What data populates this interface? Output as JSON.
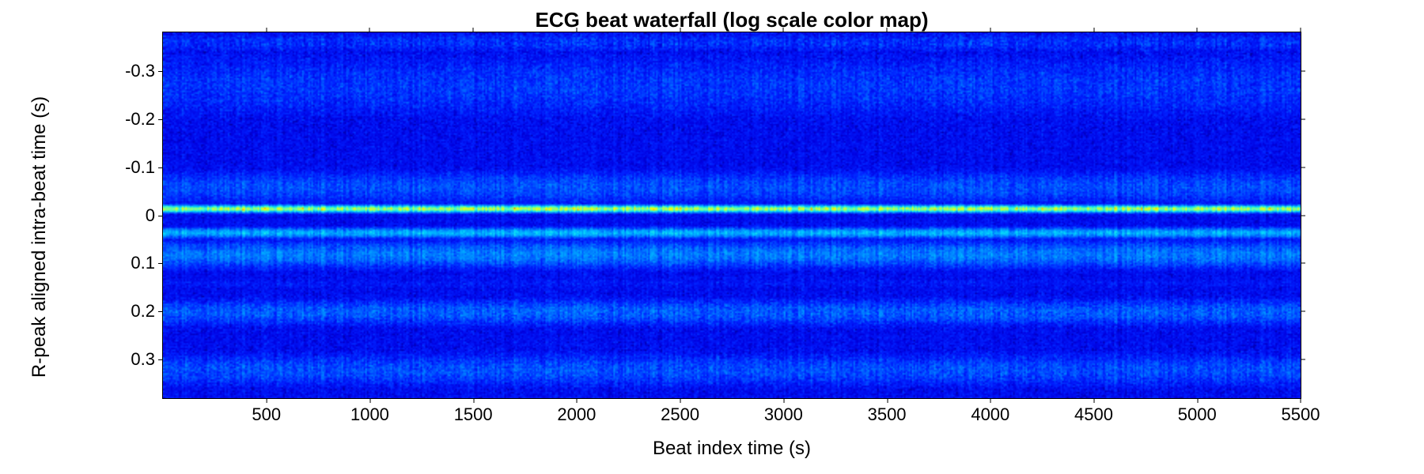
{
  "chart": {
    "type": "heatmap",
    "title": "ECG beat waterfall (log scale color map)",
    "title_fontsize": 26,
    "title_fontweight": "bold",
    "xlabel": "Beat index time (s)",
    "ylabel": "R-peak aligned intra-beat time (s)",
    "label_fontsize": 24,
    "tick_fontsize": 22,
    "xlim": [
      0,
      5500
    ],
    "ylim": [
      -0.38,
      0.38
    ],
    "y_reversed": true,
    "xticks": [
      500,
      1000,
      1500,
      2000,
      2500,
      3000,
      3500,
      4000,
      4500,
      5000,
      5500
    ],
    "yticks": [
      -0.3,
      -0.2,
      -0.1,
      0,
      0.1,
      0.2,
      0.3
    ],
    "background_color": "#ffffff",
    "axis_color": "#000000",
    "text_color": "#000000",
    "colormap": "jet_log",
    "colormap_stops": [
      {
        "t": 0.0,
        "color": "#00007f"
      },
      {
        "t": 0.1,
        "color": "#0000e0"
      },
      {
        "t": 0.2,
        "color": "#0020ff"
      },
      {
        "t": 0.35,
        "color": "#0080ff"
      },
      {
        "t": 0.5,
        "color": "#00d0ff"
      },
      {
        "t": 0.62,
        "color": "#40ffd0"
      },
      {
        "t": 0.75,
        "color": "#a0ff60"
      },
      {
        "t": 0.87,
        "color": "#ffff00"
      },
      {
        "t": 0.95,
        "color": "#ff6000"
      },
      {
        "t": 1.0,
        "color": "#800000"
      }
    ],
    "bands": [
      {
        "y_center": -0.36,
        "y_halfwidth": 0.03,
        "intensity": 0.18,
        "noise": 0.1
      },
      {
        "y_center": -0.27,
        "y_halfwidth": 0.1,
        "intensity": 0.19,
        "noise": 0.09
      },
      {
        "y_center": -0.175,
        "y_halfwidth": 0.015,
        "intensity": 0.12,
        "noise": 0.06
      },
      {
        "y_center": -0.12,
        "y_halfwidth": 0.03,
        "intensity": 0.1,
        "noise": 0.05
      },
      {
        "y_center": -0.06,
        "y_halfwidth": 0.05,
        "intensity": 0.22,
        "noise": 0.08
      },
      {
        "y_center": -0.015,
        "y_halfwidth": 0.01,
        "intensity": 0.62,
        "noise": 0.03
      },
      {
        "y_center": 0.035,
        "y_halfwidth": 0.015,
        "intensity": 0.36,
        "noise": 0.06
      },
      {
        "y_center": 0.08,
        "y_halfwidth": 0.04,
        "intensity": 0.28,
        "noise": 0.08
      },
      {
        "y_center": 0.14,
        "y_halfwidth": 0.02,
        "intensity": 0.14,
        "noise": 0.06
      },
      {
        "y_center": 0.2,
        "y_halfwidth": 0.04,
        "intensity": 0.24,
        "noise": 0.09
      },
      {
        "y_center": 0.265,
        "y_halfwidth": 0.015,
        "intensity": 0.12,
        "noise": 0.06
      },
      {
        "y_center": 0.32,
        "y_halfwidth": 0.05,
        "intensity": 0.22,
        "noise": 0.09
      }
    ],
    "base_intensity": 0.14,
    "streaks": [
      {
        "x": 1700,
        "delta": 0.06
      },
      {
        "x": 2800,
        "delta": 0.05
      },
      {
        "x": 4600,
        "delta": 0.07
      },
      {
        "x": 5200,
        "delta": 0.04
      }
    ],
    "canvas_cols": 720,
    "canvas_rows": 232
  }
}
